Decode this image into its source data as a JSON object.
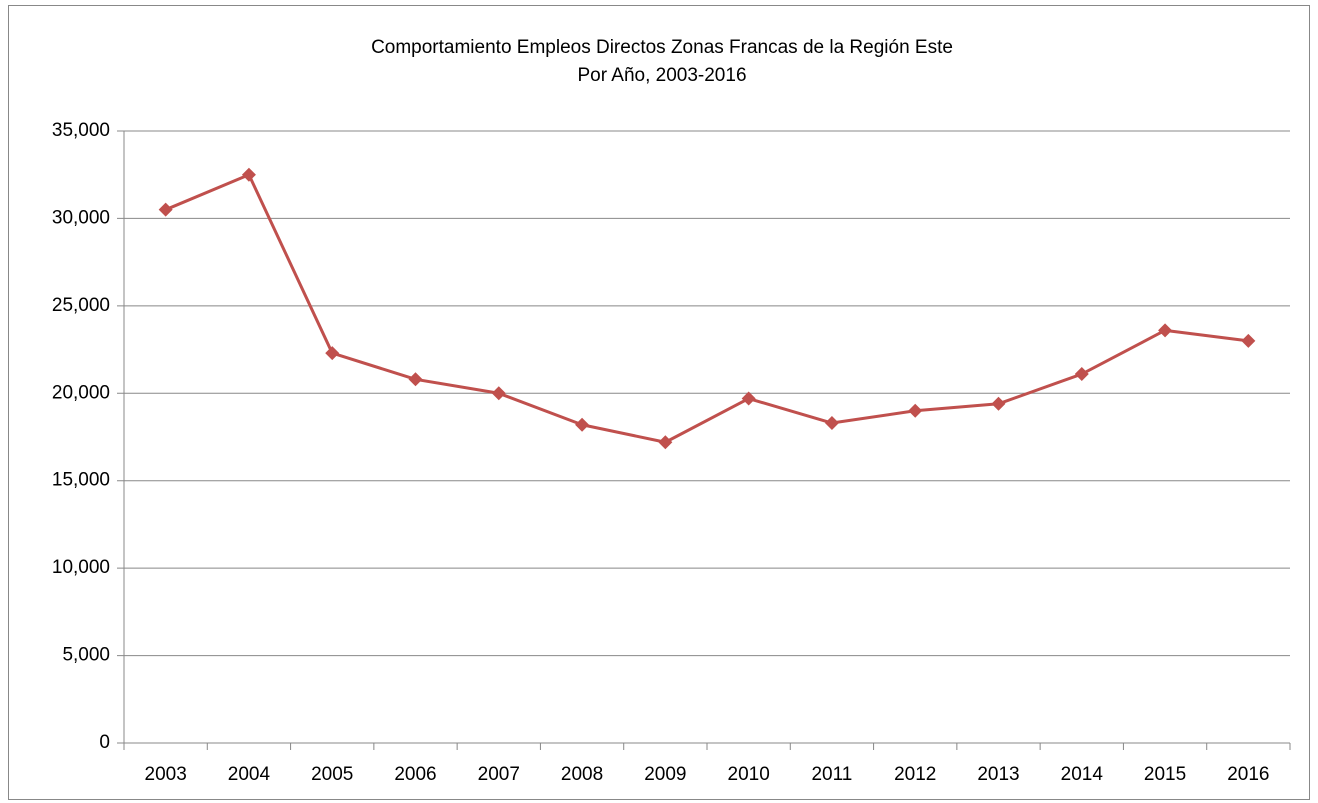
{
  "chart_data": {
    "type": "line",
    "title": "Comportamiento Empleos Directos Zonas Francas de la Región Este",
    "subtitle": "Por Año, 2003-2016",
    "categories": [
      "2003",
      "2004",
      "2005",
      "2006",
      "2007",
      "2008",
      "2009",
      "2010",
      "2011",
      "2012",
      "2013",
      "2014",
      "2015",
      "2016"
    ],
    "values": [
      30500,
      32500,
      22300,
      20800,
      20000,
      18200,
      17200,
      19700,
      18300,
      19000,
      19400,
      21100,
      23600,
      23000
    ],
    "color": "#c0504d",
    "ylim": [
      0,
      35000
    ],
    "yticks": [
      0,
      {
        "value": 5000,
        "label": "5,000"
      },
      {
        "value": 10000,
        "label": "10,000"
      },
      {
        "value": 15000,
        "label": "15,000"
      },
      {
        "value": 20000,
        "label": "20,000"
      },
      {
        "value": 25000,
        "label": "25,000"
      },
      {
        "value": 30000,
        "label": "30,000"
      },
      {
        "value": 35000,
        "label": "35,000"
      }
    ],
    "grid": true
  }
}
